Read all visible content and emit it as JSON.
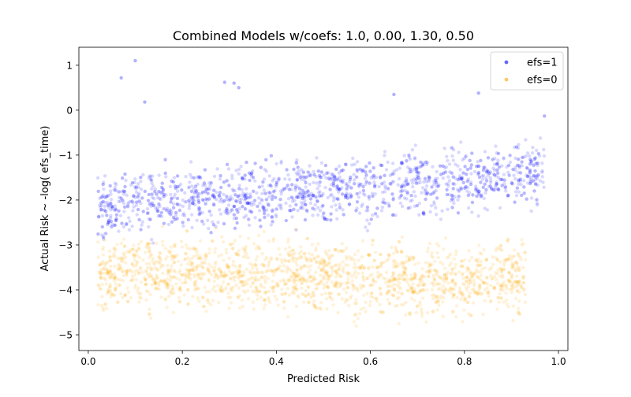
{
  "chart_data": {
    "type": "scatter",
    "title": "Combined Models   w/coefs: 1.0, 0.00, 1.30, 0.50",
    "xlabel": "Predicted Risk",
    "ylabel": "Actual Risk ~ -log( efs_time)",
    "xlim": [
      -0.02,
      1.02
    ],
    "ylim": [
      -5.35,
      1.4
    ],
    "xticks": [
      0.0,
      0.2,
      0.4,
      0.6,
      0.8,
      1.0
    ],
    "xtick_labels": [
      "0.0",
      "0.2",
      "0.4",
      "0.6",
      "0.8",
      "1.0"
    ],
    "yticks": [
      1,
      0,
      -1,
      -2,
      -3,
      -4,
      -5
    ],
    "ytick_labels": [
      "1",
      "0",
      "−1",
      "−2",
      "−3",
      "−4",
      "−5"
    ],
    "grid": false,
    "legend_position": "top-right",
    "series": [
      {
        "name": "efs=1",
        "color": "#0000ff",
        "alpha": 0.15,
        "approx_count": 1800,
        "x_range": [
          0.02,
          0.97
        ],
        "trend": [
          [
            0.05,
            -2.1
          ],
          [
            0.3,
            -1.95
          ],
          [
            0.5,
            -1.8
          ],
          [
            0.7,
            -1.6
          ],
          [
            0.95,
            -1.4
          ]
        ],
        "y_spread": 0.45,
        "outliers": [
          [
            0.1,
            1.1
          ],
          [
            0.07,
            0.72
          ],
          [
            0.29,
            0.62
          ],
          [
            0.31,
            0.6
          ],
          [
            0.32,
            0.5
          ],
          [
            0.12,
            0.18
          ],
          [
            0.65,
            0.35
          ],
          [
            0.83,
            0.38
          ],
          [
            0.97,
            -0.13
          ]
        ]
      },
      {
        "name": "efs=0",
        "color": "#ffa500",
        "alpha": 0.15,
        "approx_count": 1800,
        "x_range": [
          0.02,
          0.93
        ],
        "trend": [
          [
            0.05,
            -3.6
          ],
          [
            0.3,
            -3.65
          ],
          [
            0.5,
            -3.7
          ],
          [
            0.7,
            -3.75
          ],
          [
            0.9,
            -3.75
          ]
        ],
        "y_spread": 0.5,
        "y_clip": [
          -5.05,
          -2.3
        ]
      }
    ]
  }
}
